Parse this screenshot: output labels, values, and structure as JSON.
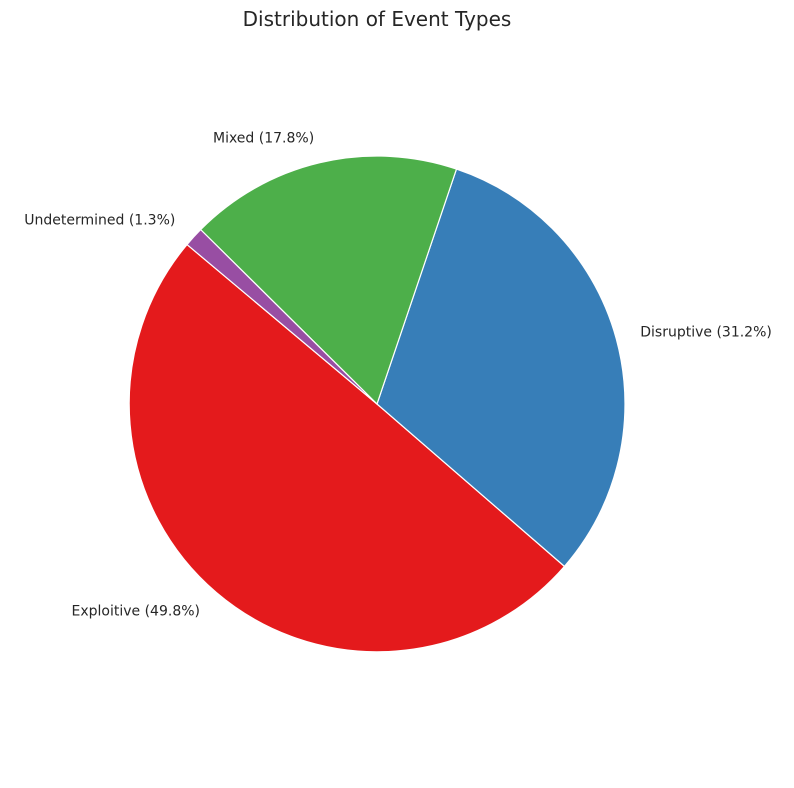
{
  "chart_data": {
    "type": "pie",
    "title": "Distribution of Event Types",
    "start_angle_deg": 140,
    "direction": "counterclockwise",
    "slices": [
      {
        "label": "Exploitive (49.8%)",
        "value": 49.8,
        "color": "#e41a1c"
      },
      {
        "label": "Disruptive (31.2%)",
        "value": 31.2,
        "color": "#377eb8"
      },
      {
        "label": "Mixed (17.8%)",
        "value": 17.8,
        "color": "#4daf4a"
      },
      {
        "label": "Undetermined (1.3%)",
        "value": 1.3,
        "color": "#984ea3"
      }
    ],
    "edge_color": "#ffffff"
  }
}
